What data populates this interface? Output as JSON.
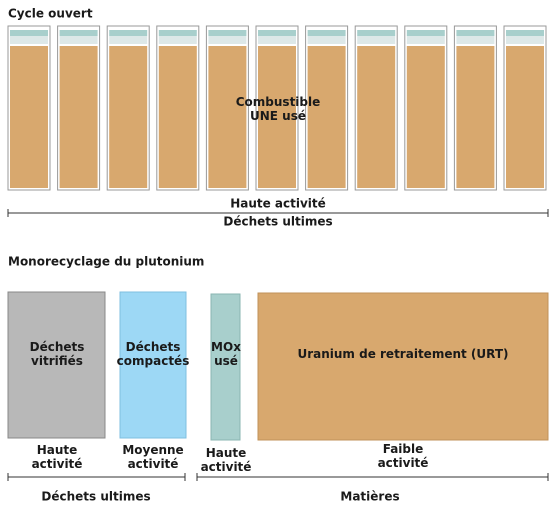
{
  "open_cycle": {
    "title": "Cycle ouvert",
    "fuel_label": [
      "Combustible",
      "UNE usé"
    ],
    "activity": "Haute activité",
    "category": "Déchets ultimes"
  },
  "monorecycling": {
    "title": "Monorecyclage du plutonium",
    "boxes": [
      {
        "label": [
          "Déchets",
          "vitrifiés"
        ],
        "activity": [
          "Haute",
          "activité"
        ]
      },
      {
        "label": [
          "Déchets",
          "compactés"
        ],
        "activity": [
          "Moyenne",
          "activité"
        ]
      },
      {
        "label": [
          "MOx",
          "usé"
        ],
        "activity": [
          "Haute",
          "activité"
        ]
      },
      {
        "label": [
          "Uranium de retraitement (URT)"
        ],
        "activity": [
          "Faible",
          "activité"
        ]
      }
    ],
    "groups": [
      "Déchets ultimes",
      "Matières"
    ]
  }
}
